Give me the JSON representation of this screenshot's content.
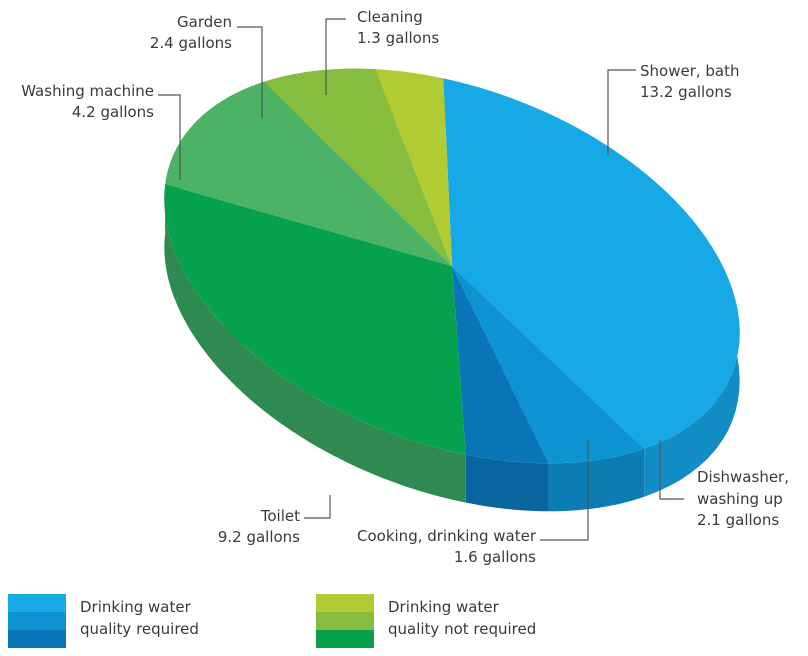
{
  "chart_data": {
    "type": "pie",
    "unit": "gallons",
    "slices": [
      {
        "label": "Shower, bath",
        "value": 13.2,
        "value_label": "13.2 gallons",
        "group": "Drinking water quality required",
        "color": "#16a9e6",
        "side": "#118cc4"
      },
      {
        "label": "Dishwasher, washing up",
        "value": 2.1,
        "value_label": "2.1 gallons",
        "group": "Drinking water quality required",
        "color": "#0d93d2",
        "side": "#0b7db3"
      },
      {
        "label": "Cooking, drinking water",
        "value": 1.6,
        "value_label": "1.6 gallons",
        "group": "Drinking water quality required",
        "color": "#0a76b8",
        "side": "#08659e"
      },
      {
        "label": "Toilet",
        "value": 9.2,
        "value_label": "9.2 gallons",
        "group": "Drinking water quality not required",
        "color": "#05a14f",
        "side": "#2e8a50"
      },
      {
        "label": "Washing machine",
        "value": 4.2,
        "value_label": "4.2 gallons",
        "group": "Drinking water quality not required",
        "color": "#4cb266",
        "side": "#0c7a45"
      },
      {
        "label": "Garden",
        "value": 2.4,
        "value_label": "2.4 gallons",
        "group": "Drinking water quality not required",
        "color": "#86bd3f",
        "side": "#6a9a30"
      },
      {
        "label": "Cleaning",
        "value": 1.3,
        "value_label": "1.3 gallons",
        "group": "Drinking water quality not required",
        "color": "#b1cc33",
        "side": "#8fa82a"
      }
    ],
    "legend": [
      {
        "line1": "Drinking water",
        "line2": "quality required",
        "colors": [
          "#16a9e6",
          "#0d93d2",
          "#0a76b8"
        ]
      },
      {
        "line1": "Drinking water",
        "line2": "quality not required",
        "colors": [
          "#b1cc33",
          "#86bd3f",
          "#05a14f"
        ]
      }
    ]
  }
}
